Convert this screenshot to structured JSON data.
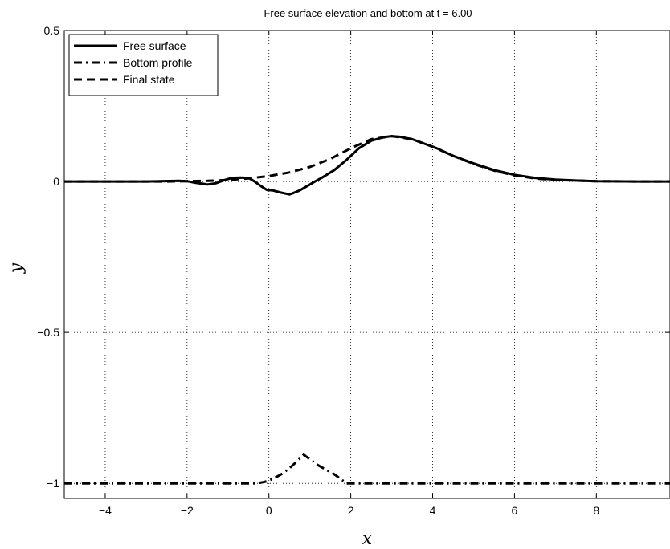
{
  "chart_data": {
    "type": "line",
    "title": "Free surface elevation and bottom at t = 6.00",
    "xlabel": "x",
    "ylabel": "y",
    "xlim": [
      -5,
      9.8
    ],
    "ylim": [
      -1.05,
      0.5
    ],
    "xticks": [
      -4,
      -2,
      0,
      2,
      4,
      6,
      8
    ],
    "yticks": [
      -1,
      -0.5,
      0,
      0.5
    ],
    "xtick_labels": [
      "−4",
      "−2",
      "0",
      "2",
      "4",
      "6",
      "8"
    ],
    "ytick_labels": [
      "−1",
      "−0.5",
      "0",
      "0.5"
    ],
    "grid": true,
    "legend_position": "top-left",
    "series": [
      {
        "name": "Free surface",
        "style": "solid",
        "color": "#000000",
        "x": [
          -5,
          -3,
          -2.2,
          -2,
          -1.8,
          -1.5,
          -1.3,
          -1.1,
          -0.9,
          -0.7,
          -0.5,
          -0.35,
          -0.2,
          -0.05,
          0.1,
          0.3,
          0.5,
          0.6,
          0.75,
          0.9,
          1.1,
          1.3,
          1.6,
          1.9,
          2.2,
          2.5,
          2.8,
          3.0,
          3.2,
          3.5,
          3.8,
          4.1,
          4.5,
          5.0,
          5.5,
          6.0,
          6.5,
          7.0,
          7.5,
          8.0,
          9.0,
          9.8
        ],
        "y": [
          0.0,
          0.0,
          0.002,
          0.001,
          -0.004,
          -0.01,
          -0.006,
          0.004,
          0.012,
          0.013,
          0.012,
          0.0,
          -0.015,
          -0.028,
          -0.03,
          -0.037,
          -0.043,
          -0.038,
          -0.03,
          -0.018,
          -0.002,
          0.013,
          0.038,
          0.072,
          0.11,
          0.135,
          0.147,
          0.15,
          0.148,
          0.14,
          0.125,
          0.11,
          0.085,
          0.06,
          0.038,
          0.022,
          0.012,
          0.006,
          0.003,
          0.001,
          0.0,
          0.0
        ]
      },
      {
        "name": "Bottom profile",
        "style": "dashdot",
        "color": "#000000",
        "x": [
          -5,
          -0.3,
          -0.1,
          0.1,
          0.3,
          0.5,
          0.7,
          0.85,
          1.0,
          1.2,
          1.4,
          1.6,
          1.8,
          1.9,
          2.0,
          9.8
        ],
        "y": [
          -1.0,
          -1.0,
          -0.995,
          -0.985,
          -0.97,
          -0.95,
          -0.925,
          -0.905,
          -0.92,
          -0.94,
          -0.955,
          -0.97,
          -0.99,
          -1.0,
          -1.0,
          -1.0
        ]
      },
      {
        "name": "Final state",
        "style": "dashed",
        "color": "#000000",
        "x": [
          -5,
          -2.5,
          -2,
          -1.5,
          -1.0,
          -0.5,
          0.0,
          0.5,
          1.0,
          1.5,
          2.0,
          2.5,
          3.0,
          3.5,
          4.0,
          4.5,
          5.0,
          5.5,
          6.0,
          6.5,
          7.0,
          8.0,
          9.0,
          9.8
        ],
        "y": [
          0.0,
          0.0,
          0.001,
          0.002,
          0.005,
          0.01,
          0.018,
          0.03,
          0.048,
          0.075,
          0.11,
          0.14,
          0.15,
          0.14,
          0.115,
          0.085,
          0.058,
          0.036,
          0.02,
          0.01,
          0.005,
          0.001,
          0.0,
          0.0
        ]
      }
    ]
  }
}
